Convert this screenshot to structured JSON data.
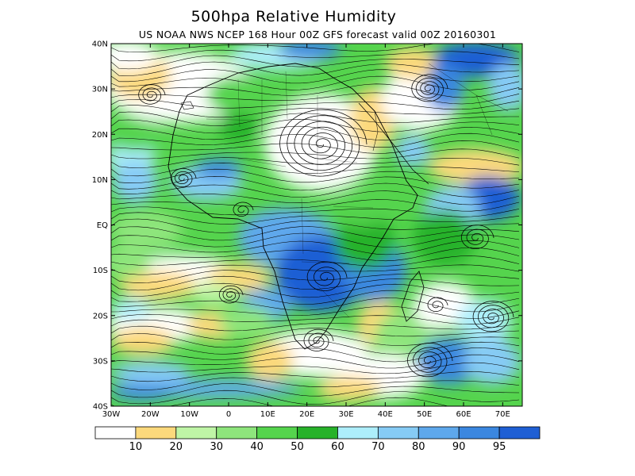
{
  "header": {
    "title": "500hpa Relative Humidity",
    "subtitle": "US NOAA NWS NCEP 168 Hour 00Z GFS forecast valid 00Z 20160301"
  },
  "map": {
    "lon_range": [
      -30,
      75
    ],
    "lat_range": [
      -40,
      40
    ],
    "lon_ticks": [
      "30W",
      "20W",
      "10W",
      "0",
      "10E",
      "20E",
      "30E",
      "40E",
      "50E",
      "60E",
      "70E"
    ],
    "lat_ticks": [
      "40N",
      "30N",
      "20N",
      "10N",
      "EQ",
      "10S",
      "20S",
      "30S",
      "40S"
    ]
  },
  "colorbar": {
    "colors": [
      "#ffffff",
      "#fcd97c",
      "#bff5a6",
      "#8ee57c",
      "#55d44d",
      "#27b22a",
      "#adeefb",
      "#86cbf5",
      "#5ea8ec",
      "#3b87e0",
      "#1f5fd4"
    ],
    "labels": [
      "10",
      "20",
      "30",
      "40",
      "50",
      "60",
      "70",
      "80",
      "90",
      "95"
    ]
  },
  "palette": {
    "white": "#ffffff",
    "yellow": "#fcd97c",
    "pale_green": "#bff5a6",
    "light_green": "#8ee57c",
    "green": "#55d44d",
    "dark_green": "#27b22a",
    "pale_blue": "#adeefb",
    "light_blue": "#86cbf5",
    "blue": "#5ea8ec",
    "mid_blue": "#3b87e0",
    "dark_blue": "#1f5fd4"
  }
}
